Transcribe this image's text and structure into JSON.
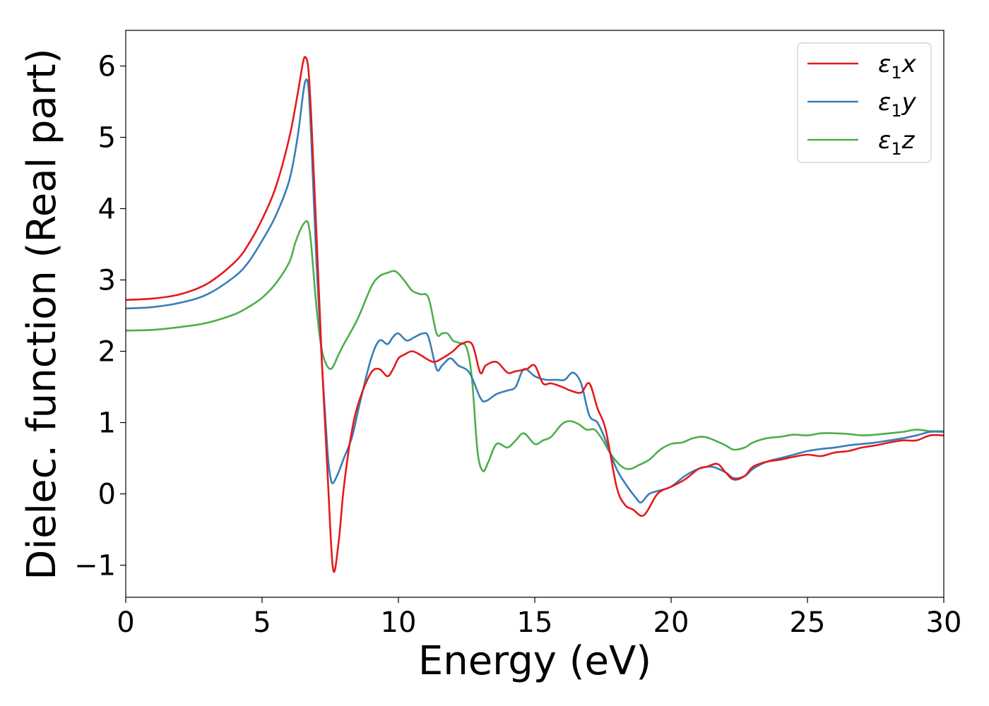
{
  "chart_data": {
    "type": "line",
    "title": "",
    "xlabel": "Energy (eV)",
    "ylabel": "Dielec. function (Real part)",
    "xlim": [
      0,
      30
    ],
    "ylim": [
      -1.45,
      6.5
    ],
    "xticks": [
      0,
      5,
      10,
      15,
      20,
      25,
      30
    ],
    "yticks": [
      -1,
      0,
      1,
      2,
      3,
      4,
      5,
      6
    ],
    "grid": false,
    "legend_position": "top-right",
    "series": [
      {
        "name": "ε₁x",
        "label_base": "ε",
        "label_sub": "1",
        "label_suffix": "x",
        "color": "#e41a1c",
        "x": [
          0,
          1,
          2,
          3,
          4,
          4.5,
          5,
          5.5,
          6,
          6.3,
          6.5,
          6.6,
          6.7,
          6.8,
          7,
          7.2,
          7.4,
          7.6,
          7.8,
          8,
          8.3,
          8.6,
          9,
          9.3,
          9.6,
          9.8,
          10,
          10.2,
          10.5,
          10.8,
          11,
          11.3,
          11.6,
          12,
          12.3,
          12.7,
          13,
          13.2,
          13.6,
          14,
          14.3,
          14.7,
          15,
          15.3,
          15.6,
          16,
          16.3,
          16.7,
          17,
          17.3,
          17.6,
          18,
          18.3,
          18.6,
          19,
          19.5,
          20,
          20.5,
          21,
          21.3,
          21.7,
          22,
          22.3,
          22.7,
          23,
          23.5,
          24,
          24.5,
          25,
          25.5,
          26,
          26.5,
          27,
          27.5,
          28,
          28.5,
          29,
          29.5,
          30
        ],
        "y": [
          2.72,
          2.74,
          2.8,
          2.95,
          3.25,
          3.5,
          3.85,
          4.3,
          5.0,
          5.6,
          6.05,
          6.12,
          5.95,
          5.3,
          3.6,
          1.8,
          0.3,
          -1.05,
          -0.7,
          0.1,
          0.9,
          1.35,
          1.7,
          1.75,
          1.65,
          1.75,
          1.9,
          1.95,
          2.0,
          1.95,
          1.9,
          1.85,
          1.9,
          2.0,
          2.1,
          2.1,
          1.7,
          1.8,
          1.85,
          1.7,
          1.72,
          1.75,
          1.8,
          1.55,
          1.55,
          1.5,
          1.45,
          1.42,
          1.55,
          1.2,
          0.9,
          0.1,
          -0.15,
          -0.22,
          -0.3,
          0.0,
          0.1,
          0.2,
          0.35,
          0.38,
          0.42,
          0.3,
          0.2,
          0.25,
          0.38,
          0.45,
          0.48,
          0.52,
          0.55,
          0.53,
          0.58,
          0.6,
          0.65,
          0.68,
          0.72,
          0.75,
          0.75,
          0.82,
          0.82
        ]
      },
      {
        "name": "ε₁y",
        "label_base": "ε",
        "label_sub": "1",
        "label_suffix": "y",
        "color": "#377eb8",
        "x": [
          0,
          1,
          2,
          3,
          4,
          4.5,
          5,
          5.5,
          6,
          6.3,
          6.5,
          6.6,
          6.7,
          6.8,
          7,
          7.2,
          7.4,
          7.5,
          7.6,
          7.8,
          8,
          8.3,
          8.6,
          9,
          9.3,
          9.6,
          9.8,
          10,
          10.3,
          10.6,
          10.9,
          11.1,
          11.4,
          11.6,
          11.9,
          12.2,
          12.6,
          13,
          13.2,
          13.6,
          14,
          14.3,
          14.6,
          15,
          15.4,
          15.8,
          16.1,
          16.4,
          16.7,
          17,
          17.3,
          17.6,
          18,
          18.4,
          18.7,
          18.9,
          19.2,
          19.6,
          20,
          20.5,
          21,
          21.5,
          22,
          22.3,
          22.7,
          23,
          23.5,
          24,
          24.5,
          25,
          25.5,
          26,
          26.5,
          27,
          27.5,
          28,
          28.5,
          29,
          29.5,
          30
        ],
        "y": [
          2.6,
          2.62,
          2.68,
          2.8,
          3.05,
          3.25,
          3.55,
          3.9,
          4.4,
          5.0,
          5.6,
          5.8,
          5.7,
          5.0,
          3.2,
          1.8,
          0.6,
          0.25,
          0.15,
          0.3,
          0.5,
          0.8,
          1.3,
          1.9,
          2.15,
          2.1,
          2.2,
          2.25,
          2.15,
          2.2,
          2.25,
          2.2,
          1.75,
          1.8,
          1.9,
          1.8,
          1.7,
          1.35,
          1.3,
          1.4,
          1.45,
          1.5,
          1.75,
          1.65,
          1.6,
          1.6,
          1.6,
          1.7,
          1.55,
          1.1,
          1.0,
          0.75,
          0.35,
          0.1,
          -0.05,
          -0.12,
          0.0,
          0.05,
          0.1,
          0.25,
          0.35,
          0.38,
          0.3,
          0.22,
          0.25,
          0.35,
          0.45,
          0.5,
          0.55,
          0.6,
          0.63,
          0.65,
          0.68,
          0.7,
          0.72,
          0.75,
          0.78,
          0.82,
          0.87,
          0.87
        ]
      },
      {
        "name": "ε₁z",
        "label_base": "ε",
        "label_sub": "1",
        "label_suffix": "z",
        "color": "#4daf4a",
        "x": [
          0,
          1,
          2,
          3,
          4,
          4.5,
          5,
          5.5,
          6,
          6.2,
          6.4,
          6.6,
          6.7,
          6.8,
          7,
          7.2,
          7.5,
          7.8,
          8,
          8.5,
          9,
          9.3,
          9.6,
          9.9,
          10.2,
          10.5,
          10.8,
          11.1,
          11.4,
          11.6,
          11.8,
          12,
          12.2,
          12.5,
          12.7,
          12.9,
          13.1,
          13.3,
          13.6,
          14,
          14.3,
          14.6,
          15,
          15.3,
          15.6,
          16,
          16.3,
          16.6,
          16.9,
          17.2,
          17.5,
          17.8,
          18.2,
          18.5,
          18.8,
          19.2,
          19.6,
          20,
          20.4,
          20.8,
          21.2,
          21.6,
          22,
          22.3,
          22.7,
          23,
          23.5,
          24,
          24.5,
          25,
          25.5,
          26,
          26.5,
          27,
          27.5,
          28,
          28.5,
          29,
          29.5,
          30
        ],
        "y": [
          2.29,
          2.3,
          2.34,
          2.4,
          2.52,
          2.62,
          2.75,
          2.95,
          3.25,
          3.5,
          3.7,
          3.82,
          3.78,
          3.5,
          2.6,
          2.0,
          1.75,
          1.95,
          2.1,
          2.45,
          2.9,
          3.05,
          3.1,
          3.12,
          3.0,
          2.85,
          2.8,
          2.75,
          2.25,
          2.25,
          2.25,
          2.15,
          2.12,
          2.05,
          1.6,
          0.6,
          0.32,
          0.45,
          0.7,
          0.65,
          0.75,
          0.85,
          0.7,
          0.75,
          0.8,
          0.98,
          1.02,
          0.98,
          0.9,
          0.9,
          0.75,
          0.55,
          0.38,
          0.35,
          0.4,
          0.48,
          0.62,
          0.7,
          0.72,
          0.78,
          0.8,
          0.75,
          0.68,
          0.62,
          0.65,
          0.72,
          0.78,
          0.8,
          0.83,
          0.82,
          0.85,
          0.85,
          0.84,
          0.82,
          0.83,
          0.85,
          0.87,
          0.9,
          0.88,
          0.88
        ]
      }
    ]
  }
}
